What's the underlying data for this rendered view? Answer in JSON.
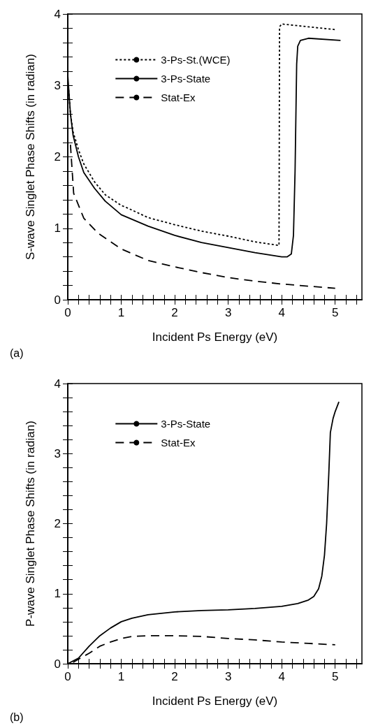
{
  "chart_data": [
    {
      "type": "line",
      "xlabel": "Incident Ps Energy (eV)",
      "ylabel": "S-wave Singlet Phase Shifts (in radian)",
      "annotations": [
        "(a)"
      ],
      "xlim": [
        0,
        5.5
      ],
      "ylim": [
        0,
        4
      ],
      "xticks": [
        0,
        {
          "value": 0.2,
          "label": null
        },
        {
          "value": 0.4,
          "label": null
        },
        {
          "value": 0.6,
          "label": null
        },
        {
          "value": 0.8,
          "label": null
        },
        1,
        {
          "value": 1.2,
          "label": null
        },
        {
          "value": 1.4,
          "label": null
        },
        {
          "value": 1.6,
          "label": null
        },
        {
          "value": 1.8,
          "label": null
        },
        2,
        {
          "value": 2.2,
          "label": null
        },
        {
          "value": 2.4,
          "label": null
        },
        {
          "value": 2.6,
          "label": null
        },
        {
          "value": 2.8,
          "label": null
        },
        3,
        {
          "value": 3.2,
          "label": null
        },
        {
          "value": 3.4,
          "label": null
        },
        {
          "value": 3.6,
          "label": null
        },
        {
          "value": 3.8,
          "label": null
        },
        4,
        {
          "value": 4.2,
          "label": null
        },
        {
          "value": 4.4,
          "label": null
        },
        {
          "value": 4.6,
          "label": null
        },
        {
          "value": 4.8,
          "label": null
        },
        5,
        {
          "value": 5.2,
          "label": null
        },
        {
          "value": 5.4,
          "label": null
        }
      ],
      "yticks": [
        0,
        {
          "value": 0.2,
          "label": null
        },
        {
          "value": 0.4,
          "label": null
        },
        {
          "value": 0.6,
          "label": null
        },
        {
          "value": 0.8,
          "label": null
        },
        1,
        {
          "value": 1.2,
          "label": null
        },
        {
          "value": 1.4,
          "label": null
        },
        {
          "value": 1.6,
          "label": null
        },
        {
          "value": 1.8,
          "label": null
        },
        2,
        {
          "value": 2.2,
          "label": null
        },
        {
          "value": 2.4,
          "label": null
        },
        {
          "value": 2.6,
          "label": null
        },
        {
          "value": 2.8,
          "label": null
        },
        3,
        {
          "value": 3.2,
          "label": null
        },
        {
          "value": 3.4,
          "label": null
        },
        {
          "value": 3.6,
          "label": null
        },
        {
          "value": 3.8,
          "label": null
        },
        4
      ],
      "grid": false,
      "legend": "top left",
      "marker": "none",
      "series": [
        {
          "name": "3-Ps-St.(WCE)",
          "color": "#000000",
          "line_style": "dotted",
          "x": [
            0.01,
            0.05,
            0.1,
            0.2,
            0.3,
            0.5,
            0.7,
            1.0,
            1.1,
            1.5,
            2.0,
            2.5,
            3.0,
            3.5,
            3.95,
            3.96,
            4.0,
            4.5,
            5.02
          ],
          "values": [
            3.0,
            2.6,
            2.35,
            2.1,
            1.9,
            1.65,
            1.47,
            1.32,
            1.29,
            1.15,
            1.05,
            0.96,
            0.89,
            0.81,
            0.76,
            3.82,
            3.86,
            3.82,
            3.78
          ]
        },
        {
          "name": "3-Ps-State",
          "color": "#000000",
          "line_style": "solid",
          "x": [
            0.0,
            0.05,
            0.1,
            0.2,
            0.3,
            0.5,
            0.7,
            1.0,
            1.5,
            2.0,
            2.5,
            3.0,
            3.5,
            4.0,
            4.1,
            4.18,
            4.22,
            4.25,
            4.28,
            4.3,
            4.35,
            4.5,
            5.1
          ],
          "values": [
            3.14,
            2.6,
            2.3,
            2.0,
            1.78,
            1.56,
            1.38,
            1.19,
            1.03,
            0.9,
            0.8,
            0.73,
            0.66,
            0.6,
            0.6,
            0.64,
            0.9,
            1.8,
            3.3,
            3.55,
            3.63,
            3.66,
            3.63
          ]
        },
        {
          "name": "Stat-Ex",
          "color": "#000000",
          "line_style": "dashed",
          "x": [
            0.05,
            0.11,
            0.3,
            0.57,
            1.0,
            1.5,
            2.0,
            2.5,
            3.0,
            3.5,
            4.0,
            4.5,
            5.0
          ],
          "values": [
            2.17,
            1.49,
            1.14,
            0.93,
            0.71,
            0.55,
            0.46,
            0.38,
            0.31,
            0.26,
            0.22,
            0.19,
            0.16
          ]
        }
      ]
    },
    {
      "type": "line",
      "xlabel": "Incident Ps Energy (eV)",
      "ylabel": "P-wave Singlet Phase Shifts (in radian)",
      "annotations": [
        "(b)"
      ],
      "xlim": [
        0,
        5.5
      ],
      "ylim": [
        0,
        4
      ],
      "xticks": [
        0,
        {
          "value": 0.2,
          "label": null
        },
        {
          "value": 0.4,
          "label": null
        },
        {
          "value": 0.6,
          "label": null
        },
        {
          "value": 0.8,
          "label": null
        },
        1,
        {
          "value": 1.2,
          "label": null
        },
        {
          "value": 1.4,
          "label": null
        },
        {
          "value": 1.6,
          "label": null
        },
        {
          "value": 1.8,
          "label": null
        },
        2,
        {
          "value": 2.2,
          "label": null
        },
        {
          "value": 2.4,
          "label": null
        },
        {
          "value": 2.6,
          "label": null
        },
        {
          "value": 2.8,
          "label": null
        },
        3,
        {
          "value": 3.2,
          "label": null
        },
        {
          "value": 3.4,
          "label": null
        },
        {
          "value": 3.6,
          "label": null
        },
        {
          "value": 3.8,
          "label": null
        },
        4,
        {
          "value": 4.2,
          "label": null
        },
        {
          "value": 4.4,
          "label": null
        },
        {
          "value": 4.6,
          "label": null
        },
        {
          "value": 4.8,
          "label": null
        },
        5,
        {
          "value": 5.2,
          "label": null
        },
        {
          "value": 5.4,
          "label": null
        }
      ],
      "yticks": [
        0,
        {
          "value": 0.2,
          "label": null
        },
        {
          "value": 0.4,
          "label": null
        },
        {
          "value": 0.6,
          "label": null
        },
        {
          "value": 0.8,
          "label": null
        },
        1,
        {
          "value": 1.2,
          "label": null
        },
        {
          "value": 1.4,
          "label": null
        },
        {
          "value": 1.6,
          "label": null
        },
        {
          "value": 1.8,
          "label": null
        },
        2,
        {
          "value": 2.2,
          "label": null
        },
        {
          "value": 2.4,
          "label": null
        },
        {
          "value": 2.6,
          "label": null
        },
        {
          "value": 2.8,
          "label": null
        },
        3,
        {
          "value": 3.2,
          "label": null
        },
        {
          "value": 3.4,
          "label": null
        },
        {
          "value": 3.6,
          "label": null
        },
        {
          "value": 3.8,
          "label": null
        },
        4
      ],
      "grid": false,
      "legend": "top left",
      "marker": "none",
      "series": [
        {
          "name": "3-Ps-State",
          "color": "#000000",
          "line_style": "solid",
          "x": [
            0.0,
            0.2,
            0.4,
            0.6,
            0.8,
            1.0,
            1.2,
            1.5,
            2.0,
            2.5,
            3.0,
            3.5,
            4.0,
            4.3,
            4.5,
            4.6,
            4.69,
            4.75,
            4.8,
            4.84,
            4.88,
            4.91,
            4.96,
            5.0,
            5.07
          ],
          "values": [
            0.0,
            0.08,
            0.25,
            0.4,
            0.51,
            0.6,
            0.65,
            0.7,
            0.74,
            0.76,
            0.77,
            0.79,
            0.82,
            0.86,
            0.91,
            0.96,
            1.07,
            1.25,
            1.55,
            2.0,
            2.7,
            3.3,
            3.5,
            3.6,
            3.74
          ]
        },
        {
          "name": "Stat-Ex",
          "color": "#000000",
          "line_style": "dashed",
          "x": [
            0.1,
            0.4,
            0.6,
            0.8,
            1.0,
            1.2,
            1.5,
            2.0,
            2.5,
            3.0,
            3.5,
            4.0,
            4.5,
            5.0
          ],
          "values": [
            0.02,
            0.15,
            0.25,
            0.31,
            0.36,
            0.39,
            0.4,
            0.4,
            0.39,
            0.36,
            0.34,
            0.31,
            0.29,
            0.27
          ]
        }
      ]
    }
  ]
}
